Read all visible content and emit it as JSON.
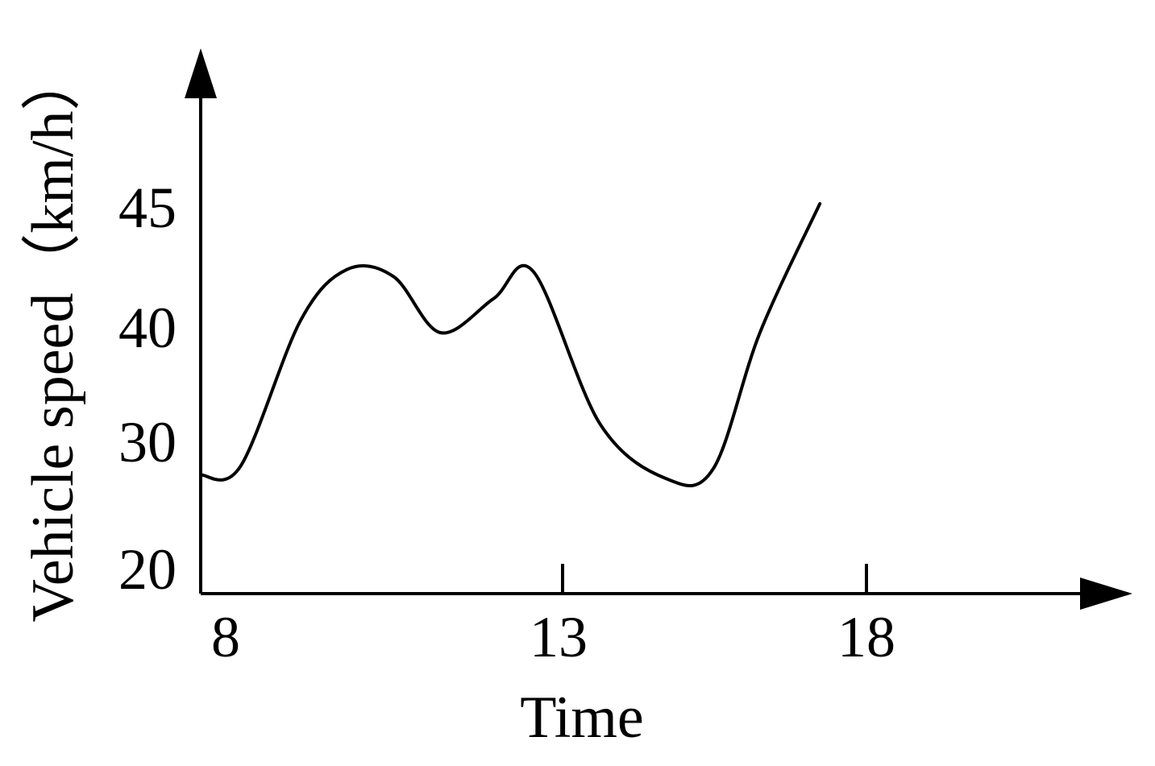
{
  "chart_data": {
    "type": "line",
    "title": "",
    "xlabel": "Time",
    "ylabel": "Vehicle speed（km/h）",
    "x_ticks": [
      "8",
      "13",
      "18"
    ],
    "y_ticks": [
      "20",
      "30",
      "40",
      "45"
    ],
    "grid": false,
    "legend": "none",
    "line_color": "#000000",
    "series": [
      {
        "x": [
          8.0,
          8.6,
          9.5,
          10.2,
          10.9,
          11.6,
          12.4,
          13.0,
          14.0,
          15.0,
          15.7,
          16.4,
          17.3
        ],
        "y": [
          27.8,
          28.5,
          40.5,
          42.6,
          42.3,
          40.0,
          41.4,
          42.5,
          32.0,
          27.5,
          28.3,
          40.0,
          45.3
        ]
      }
    ]
  }
}
